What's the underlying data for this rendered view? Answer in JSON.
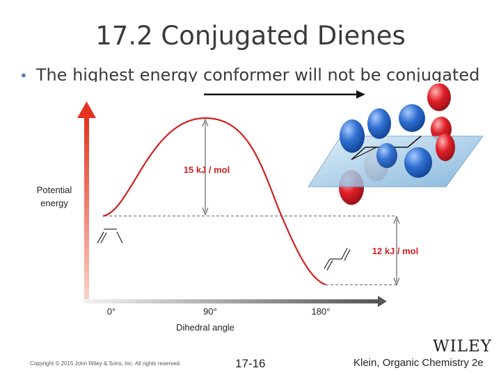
{
  "slide": {
    "title": "17.2 Conjugated Dienes",
    "bullet": "The highest energy conformer will not be conjugated"
  },
  "diagram": {
    "y_axis_label_line1": "Potential",
    "y_axis_label_line2": "energy",
    "x_axis_label": "Dihedral angle",
    "x_ticks": [
      "0°",
      "90°",
      "180°"
    ],
    "barrier_label": "15 kJ / mol",
    "difference_label": "12 kJ / mol",
    "colors": {
      "curve": "#d21e1e",
      "axis": "#e53a2a",
      "orbital_blue": "#2f6fd0",
      "orbital_red": "#e0202a",
      "plane": "#8fc3e8"
    }
  },
  "footer": {
    "copyright": "Copyright © 2015 John Wiley & Sons, Inc. All rights reserved.",
    "page": "17-16",
    "book": "Klein, Organic Chemistry 2e",
    "publisher": "WILEY"
  }
}
